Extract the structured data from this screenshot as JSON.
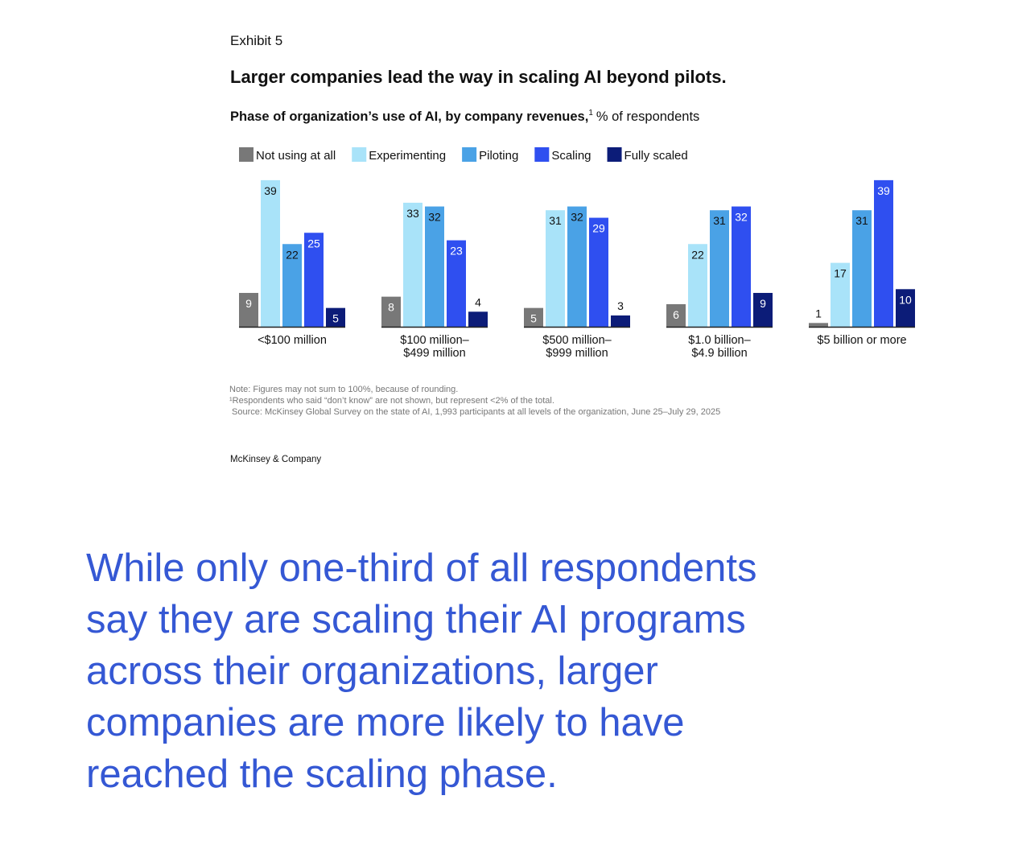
{
  "exhibit": "Exhibit 5",
  "chart_data": {
    "type": "bar",
    "title": "Larger companies lead the way in scaling AI beyond pilots.",
    "subtitle": "Phase of organization’s use of AI, by company revenues,",
    "subtitle_footnote": "1",
    "unit": "% of respondents",
    "categories": [
      [
        "<$100 million"
      ],
      [
        "$100 million–",
        "$499 million"
      ],
      [
        "$500 million–",
        "$999 million"
      ],
      [
        "$1.0 billion–",
        "$4.9 billion"
      ],
      [
        "$5 billion or more"
      ]
    ],
    "series": [
      {
        "name": "Not using at all",
        "color": "#787878",
        "values": [
          9,
          8,
          5,
          6,
          1
        ]
      },
      {
        "name": "Experimenting",
        "color": "#a9e3f9",
        "values": [
          39,
          33,
          31,
          22,
          17
        ]
      },
      {
        "name": "Piloting",
        "color": "#4aa2e6",
        "values": [
          22,
          32,
          32,
          31,
          31
        ]
      },
      {
        "name": "Scaling",
        "color": "#2f4ff0",
        "values": [
          25,
          23,
          29,
          32,
          39
        ]
      },
      {
        "name": "Fully scaled",
        "color": "#0c1c78",
        "values": [
          5,
          4,
          3,
          9,
          10
        ]
      }
    ]
  },
  "notes": [
    "Note: Figures may not sum to 100%, because of rounding.",
    "¹Respondents who said “don’t know” are not shown, but represent <2% of the total.",
    "Source: McKinsey Global Survey on the state of AI, 1,993 participants at all levels of the organization, June 25–July 29, 2025"
  ],
  "brand": "McKinsey & Company",
  "quote": [
    "While only one-third of all respondents",
    "say they are scaling their AI programs",
    "across their organizations, larger",
    "companies are more likely to have",
    "reached the scaling phase."
  ]
}
